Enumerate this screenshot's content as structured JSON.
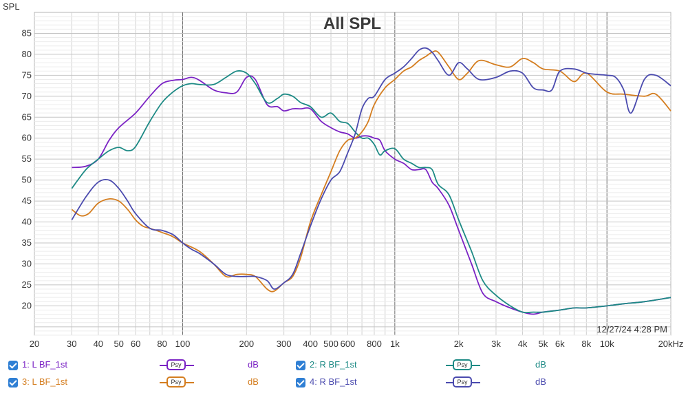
{
  "chart_data": {
    "type": "line",
    "title": "All SPL",
    "ylabel": "SPL",
    "xscale": "log",
    "xlim": [
      20,
      20000
    ],
    "ylim": [
      13,
      90
    ],
    "grid": true,
    "legend_position": "bottom",
    "timestamp": "12/27/24 4:28 PM",
    "x_ticks": [
      {
        "v": 20,
        "label": "20"
      },
      {
        "v": 30,
        "label": "30"
      },
      {
        "v": 40,
        "label": "40"
      },
      {
        "v": 50,
        "label": "50"
      },
      {
        "v": 60,
        "label": "60"
      },
      {
        "v": 80,
        "label": "80"
      },
      {
        "v": 100,
        "label": "100"
      },
      {
        "v": 200,
        "label": "200"
      },
      {
        "v": 300,
        "label": "300"
      },
      {
        "v": 400,
        "label": "400"
      },
      {
        "v": 500,
        "label": "500"
      },
      {
        "v": 600,
        "label": "600"
      },
      {
        "v": 800,
        "label": "800"
      },
      {
        "v": 1000,
        "label": "1k"
      },
      {
        "v": 2000,
        "label": "2k"
      },
      {
        "v": 3000,
        "label": "3k"
      },
      {
        "v": 4000,
        "label": "4k"
      },
      {
        "v": 5000,
        "label": "5k"
      },
      {
        "v": 6000,
        "label": "6k"
      },
      {
        "v": 8000,
        "label": "8k"
      },
      {
        "v": 10000,
        "label": "10k"
      },
      {
        "v": 20000,
        "label": "20kHz"
      }
    ],
    "y_ticks": [
      20,
      25,
      30,
      35,
      40,
      45,
      50,
      55,
      60,
      65,
      70,
      75,
      80,
      85
    ],
    "series": [
      {
        "name": "1: L BF_1st",
        "color": "#7a22c4",
        "unit": "dB",
        "x": [
          30,
          35,
          40,
          45,
          50,
          60,
          70,
          80,
          90,
          100,
          110,
          120,
          140,
          160,
          180,
          200,
          220,
          250,
          280,
          300,
          330,
          360,
          400,
          450,
          500,
          550,
          600,
          650,
          700,
          750,
          800,
          850,
          900,
          1000,
          1100,
          1200,
          1300,
          1400,
          1500,
          1600,
          1800,
          2000,
          2300,
          2600,
          3000,
          3500,
          4000,
          4500,
          5000,
          6000,
          7000,
          8000,
          10000,
          12000,
          15000,
          20000
        ],
        "y": [
          53.0,
          53.3,
          55.0,
          59.5,
          62.5,
          66.0,
          70.0,
          73.0,
          73.8,
          74.0,
          74.5,
          73.8,
          71.5,
          70.8,
          71.0,
          74.5,
          74.0,
          68.0,
          67.5,
          66.5,
          67.0,
          67.0,
          67.0,
          64.0,
          62.5,
          61.5,
          61.0,
          60.0,
          60.5,
          60.5,
          60.0,
          59.5,
          57.0,
          55.0,
          54.0,
          52.5,
          52.5,
          52.5,
          49.5,
          48.0,
          44.0,
          38.0,
          30.0,
          23.0,
          21.0,
          19.5,
          18.5,
          18.0,
          18.5,
          19.0,
          19.5,
          19.5,
          20.0,
          20.5,
          21.0,
          22.0
        ]
      },
      {
        "name": "2: R BF_1st",
        "color": "#1d8a85",
        "unit": "dB",
        "x": [
          30,
          35,
          40,
          45,
          50,
          55,
          60,
          70,
          80,
          90,
          100,
          110,
          120,
          140,
          160,
          180,
          200,
          220,
          250,
          280,
          300,
          330,
          360,
          400,
          450,
          500,
          550,
          600,
          650,
          700,
          750,
          800,
          850,
          900,
          1000,
          1100,
          1200,
          1300,
          1400,
          1500,
          1600,
          1800,
          2000,
          2300,
          2600,
          3000,
          3500,
          4000,
          4500,
          5000,
          6000,
          7000,
          8000,
          10000,
          12000,
          15000,
          20000
        ],
        "y": [
          48.0,
          52.5,
          55.0,
          57.0,
          57.8,
          57.0,
          58.0,
          64.0,
          68.5,
          71.0,
          72.5,
          73.0,
          72.8,
          72.8,
          74.5,
          76.0,
          75.5,
          73.0,
          68.5,
          69.5,
          70.5,
          70.0,
          68.5,
          67.5,
          65.0,
          66.0,
          64.0,
          63.5,
          61.5,
          60.0,
          60.0,
          58.5,
          56.0,
          57.0,
          57.5,
          55.0,
          54.0,
          53.0,
          53.0,
          52.5,
          49.0,
          46.5,
          40.5,
          33.0,
          26.0,
          22.5,
          20.0,
          18.5,
          18.5,
          18.5,
          19.0,
          19.5,
          19.5,
          20.0,
          20.5,
          21.0,
          22.0
        ]
      },
      {
        "name": "3: L BF_1st",
        "color": "#d47d1f",
        "unit": "dB",
        "x": [
          30,
          33,
          36,
          40,
          45,
          50,
          55,
          60,
          65,
          70,
          80,
          90,
          100,
          120,
          140,
          160,
          180,
          200,
          220,
          250,
          270,
          300,
          330,
          360,
          400,
          450,
          500,
          550,
          600,
          650,
          700,
          750,
          800,
          900,
          1000,
          1100,
          1200,
          1300,
          1400,
          1500,
          1600,
          1800,
          2000,
          2200,
          2500,
          3000,
          3500,
          4000,
          4500,
          5000,
          6000,
          7000,
          8000,
          10000,
          12000,
          15000,
          17000,
          20000
        ],
        "y": [
          43.0,
          41.5,
          42.0,
          44.5,
          45.5,
          45.0,
          43.0,
          40.5,
          39.0,
          38.5,
          37.5,
          36.5,
          35.0,
          33.0,
          30.0,
          27.0,
          27.5,
          27.5,
          27.0,
          24.0,
          23.5,
          25.5,
          27.0,
          31.5,
          40.0,
          46.5,
          52.0,
          57.0,
          59.5,
          60.0,
          61.5,
          64.0,
          68.0,
          72.0,
          74.0,
          76.0,
          77.0,
          78.5,
          79.5,
          80.5,
          80.5,
          77.0,
          74.0,
          75.5,
          78.5,
          77.5,
          77.0,
          79.0,
          78.0,
          76.5,
          76.0,
          73.5,
          75.5,
          71.0,
          70.5,
          70.0,
          70.5,
          66.5
        ]
      },
      {
        "name": "4: R BF_1st",
        "color": "#4a4aae",
        "unit": "dB",
        "x": [
          30,
          35,
          40,
          45,
          50,
          55,
          60,
          70,
          80,
          90,
          100,
          110,
          120,
          140,
          160,
          180,
          200,
          220,
          250,
          270,
          300,
          330,
          360,
          400,
          450,
          500,
          550,
          600,
          650,
          700,
          750,
          800,
          900,
          1000,
          1100,
          1200,
          1300,
          1400,
          1500,
          1600,
          1800,
          2000,
          2200,
          2500,
          3000,
          3500,
          4000,
          4500,
          5000,
          5500,
          6000,
          7000,
          8000,
          9000,
          10000,
          11000,
          12000,
          13000,
          15000,
          17000,
          20000
        ],
        "y": [
          40.5,
          46.0,
          49.5,
          50.0,
          48.0,
          45.0,
          42.0,
          38.5,
          38.0,
          37.0,
          35.0,
          33.5,
          32.5,
          30.0,
          27.5,
          27.0,
          27.0,
          27.0,
          26.0,
          24.0,
          25.5,
          27.5,
          32.5,
          39.0,
          45.5,
          50.0,
          52.0,
          56.5,
          61.0,
          67.0,
          69.5,
          70.0,
          74.0,
          75.5,
          77.0,
          79.0,
          81.0,
          81.5,
          80.5,
          78.5,
          75.0,
          78.0,
          76.5,
          74.0,
          74.5,
          76.0,
          75.5,
          72.0,
          71.5,
          71.5,
          76.0,
          76.5,
          75.5,
          75.2,
          75.0,
          74.5,
          71.5,
          66.0,
          74.0,
          75.0,
          72.5
        ]
      }
    ]
  },
  "legend": [
    {
      "name": "1: L BF_1st",
      "psy": "Psy",
      "unit": "dB"
    },
    {
      "name": "2: R BF_1st",
      "psy": "Psy",
      "unit": "dB"
    },
    {
      "name": "3: L BF_1st",
      "psy": "Psy",
      "unit": "dB"
    },
    {
      "name": "4: R BF_1st",
      "psy": "Psy",
      "unit": "dB"
    }
  ]
}
